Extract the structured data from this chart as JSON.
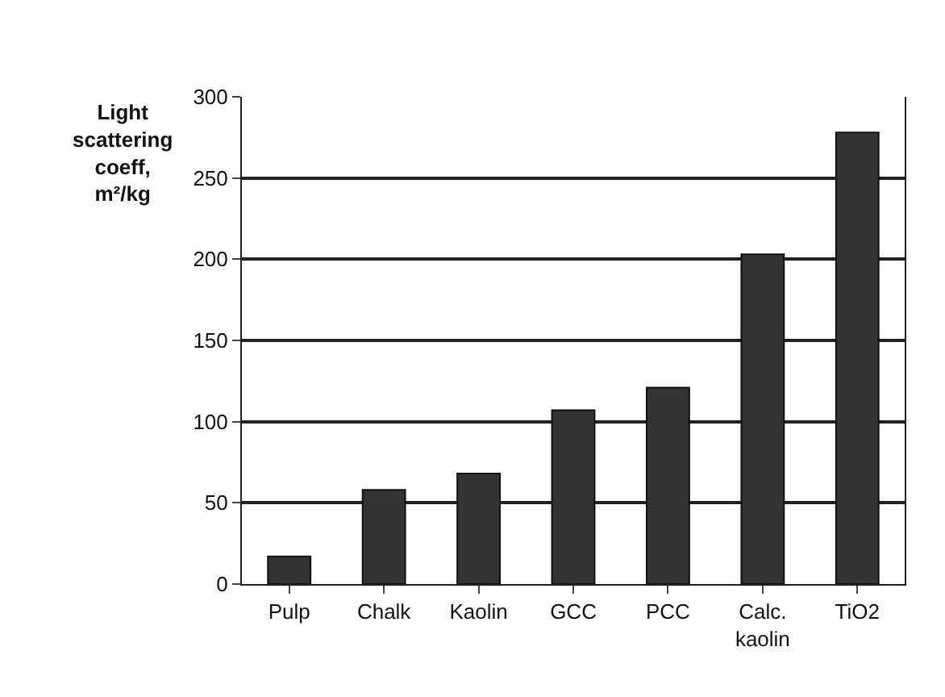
{
  "chart_data": {
    "type": "bar",
    "ylabel": "Light scattering coeff, m²/kg",
    "categories": [
      "Pulp",
      "Chalk",
      "Kaolin",
      "GCC",
      "PCC",
      "Calc. kaolin",
      "TiO2"
    ],
    "values": [
      17,
      58,
      68,
      107,
      121,
      203,
      278
    ],
    "color": "#333333",
    "ylim": [
      0,
      300
    ],
    "yticks": [
      0,
      50,
      100,
      150,
      200,
      250,
      300
    ],
    "grid": "y"
  }
}
